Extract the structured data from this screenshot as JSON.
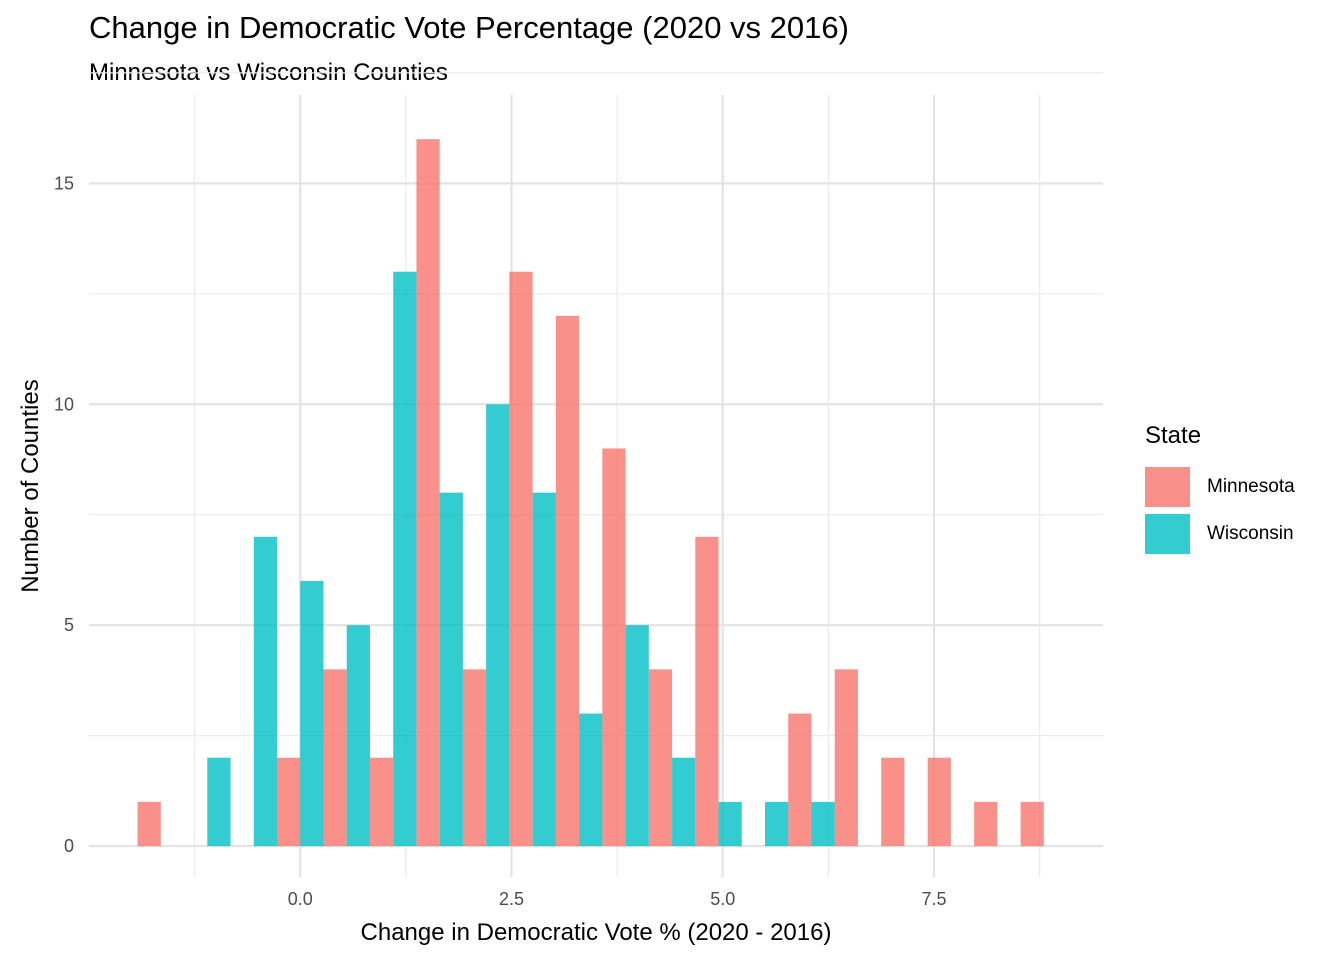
{
  "chart_data": {
    "type": "bar",
    "title": "Change in Democratic Vote Percentage (2020 vs 2016)",
    "subtitle": "Minnesota vs Wisconsin Counties",
    "xlabel": "Change in Democratic Vote % (2020 - 2016)",
    "ylabel": "Number of Counties",
    "xlim": [
      -2.5,
      9.5
    ],
    "ylim": [
      -0.7,
      17
    ],
    "x_ticks": [
      0.0,
      2.5,
      5.0,
      7.5
    ],
    "x_tick_labels": [
      "0.0",
      "2.5",
      "5.0",
      "7.5"
    ],
    "y_ticks": [
      0,
      5,
      10,
      15
    ],
    "y_tick_labels": [
      "0",
      "5",
      "10",
      "15"
    ],
    "grid": true,
    "bin_width": 0.55,
    "bin_centers": [
      -1.65,
      -1.1,
      -0.55,
      0.0,
      0.55,
      1.1,
      1.65,
      2.2,
      2.75,
      3.3,
      3.85,
      4.4,
      4.95,
      5.5,
      6.05,
      6.6,
      7.15,
      7.7,
      8.25,
      8.8
    ],
    "series": [
      {
        "name": "Minnesota",
        "color": "#F8766D",
        "values": [
          1,
          0,
          0,
          2,
          4,
          2,
          16,
          4,
          13,
          12,
          9,
          4,
          7,
          0,
          3,
          4,
          2,
          2,
          1,
          1
        ]
      },
      {
        "name": "Wisconsin",
        "color": "#00BFC4",
        "values": [
          0,
          2,
          7,
          6,
          5,
          13,
          8,
          10,
          8,
          3,
          5,
          2,
          1,
          1,
          1,
          0,
          0,
          0,
          0,
          0
        ]
      }
    ],
    "legend": {
      "title": "State",
      "position": "right"
    }
  }
}
